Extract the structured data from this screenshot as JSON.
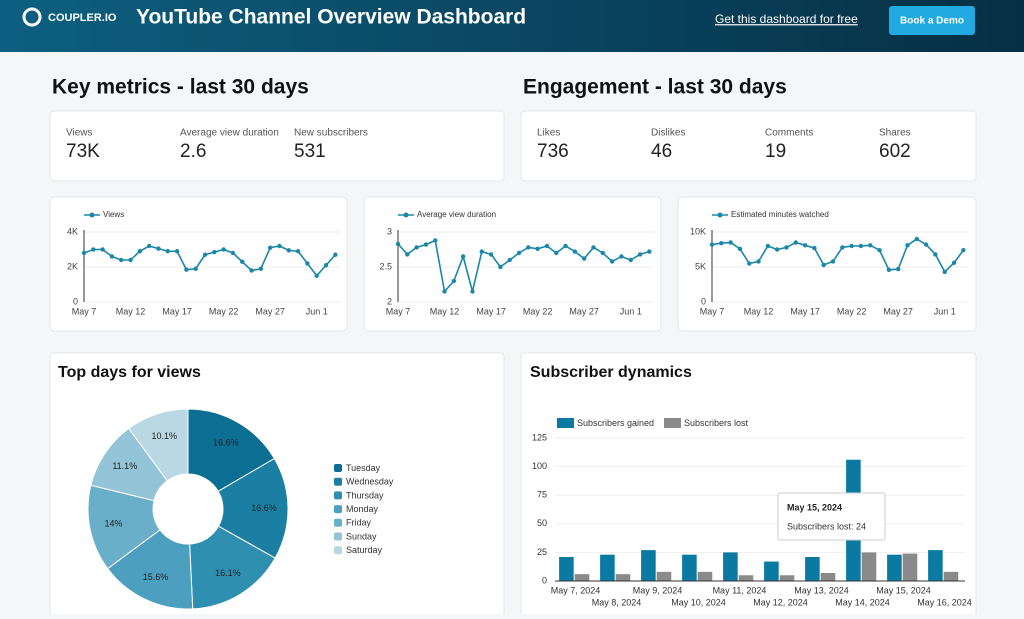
{
  "header": {
    "logo": "COUPLER.IO",
    "title": "YouTube Channel Overview Dashboard",
    "link": "Get this dashboard for free",
    "button": "Book a Demo"
  },
  "key_metrics": {
    "title": "Key metrics - last 30 days",
    "items": [
      {
        "label": "Views",
        "value": "73K"
      },
      {
        "label": "Average view duration",
        "value": 2.6
      },
      {
        "label": "New subscribers",
        "value": 531
      }
    ]
  },
  "engagement": {
    "title": "Engagement - last 30 days",
    "items": [
      {
        "label": "Likes",
        "value": 736
      },
      {
        "label": "Dislikes",
        "value": 46
      },
      {
        "label": "Comments",
        "value": 19
      },
      {
        "label": "Shares",
        "value": 602
      }
    ]
  },
  "chart_data": [
    {
      "type": "line",
      "categories": [
        "May 7",
        null,
        null,
        null,
        null,
        "May 12",
        null,
        null,
        null,
        null,
        "May 17",
        null,
        null,
        null,
        null,
        "May 22",
        null,
        null,
        null,
        null,
        "May 27",
        null,
        null,
        null,
        null,
        "Jun 1",
        null,
        null
      ],
      "series": [
        {
          "name": "Views",
          "color": "#1a87a8",
          "values": [
            2800,
            3000,
            3000,
            2600,
            2400,
            2400,
            2900,
            3200,
            3050,
            2900,
            2900,
            1850,
            1900,
            2700,
            2850,
            3000,
            2800,
            2300,
            1800,
            1900,
            3100,
            3200,
            2950,
            2900,
            2200,
            1500,
            2100,
            2700
          ]
        }
      ],
      "ylim": [
        0,
        4000
      ],
      "yticks": [
        0,
        {
          "value": 2000,
          "label": "2K"
        },
        {
          "value": 4000,
          "label": "4K"
        }
      ],
      "grid": true
    },
    {
      "type": "line",
      "categories": [
        "May 7",
        null,
        null,
        null,
        null,
        "May 12",
        null,
        null,
        null,
        null,
        "May 17",
        null,
        null,
        null,
        null,
        "May 22",
        null,
        null,
        null,
        null,
        "May 27",
        null,
        null,
        null,
        null,
        "Jun 1",
        null,
        null
      ],
      "series": [
        {
          "name": "Average view duration",
          "color": "#1a87a8",
          "values": [
            2.83,
            2.68,
            2.78,
            2.82,
            2.88,
            2.15,
            2.3,
            2.65,
            2.15,
            2.72,
            2.68,
            2.5,
            2.6,
            2.7,
            2.78,
            2.76,
            2.8,
            2.7,
            2.8,
            2.72,
            2.62,
            2.78,
            2.7,
            2.58,
            2.65,
            2.6,
            2.68,
            2.72
          ]
        }
      ],
      "ylim": [
        2,
        3
      ],
      "yticks": [
        2,
        2.5,
        3
      ],
      "grid": true
    },
    {
      "type": "line",
      "categories": [
        "May 7",
        null,
        null,
        null,
        null,
        "May 12",
        null,
        null,
        null,
        null,
        "May 17",
        null,
        null,
        null,
        null,
        "May 22",
        null,
        null,
        null,
        null,
        "May 27",
        null,
        null,
        null,
        null,
        "Jun 1",
        null,
        null
      ],
      "series": [
        {
          "name": "Estimated minutes watched",
          "color": "#1a87a8",
          "values": [
            8200,
            8400,
            8500,
            7600,
            5500,
            5800,
            8000,
            7500,
            7800,
            8500,
            8100,
            7700,
            5300,
            5800,
            7800,
            8000,
            8000,
            8100,
            7400,
            4600,
            4700,
            8100,
            9000,
            8200,
            6800,
            4300,
            5600,
            7400
          ]
        }
      ],
      "ylim": [
        0,
        10000
      ],
      "yticks": [
        0,
        {
          "value": 5000,
          "label": "5K"
        },
        {
          "value": 10000,
          "label": "10K"
        }
      ],
      "grid": true
    },
    {
      "type": "pie",
      "title": "Top days for views",
      "categories": [
        "Tuesday",
        "Wednesday",
        "Thursday",
        "Monday",
        "Friday",
        "Sunday",
        "Saturday"
      ],
      "values": [
        16.6,
        16.6,
        16.1,
        15.6,
        14,
        11.1,
        10.1
      ],
      "value_labels": [
        "16.6%",
        "16.6%",
        "16.1%",
        "15.6%",
        "14%",
        "11.1%",
        "10.1%"
      ],
      "colors": [
        "#0b6e93",
        "#1b7fa3",
        "#2f8fb1",
        "#4d9fbf",
        "#6aafca",
        "#93c4d8",
        "#b9d8e4"
      ],
      "donut": true
    },
    {
      "type": "bar",
      "title": "Subscriber dynamics",
      "categories": [
        "May 7, 2024",
        "May 8, 2024",
        "May 9, 2024",
        "May 10, 2024",
        "May 11, 2024",
        "May 12, 2024",
        "May 13, 2024",
        "May 14, 2024",
        "May 15, 2024",
        "May 16, 2024"
      ],
      "series": [
        {
          "name": "Subscribers gained",
          "color": "#0b7aa3",
          "values": [
            21,
            23,
            27,
            23,
            25,
            17,
            21,
            106,
            23,
            27
          ]
        },
        {
          "name": "Subscribers lost",
          "color": "#8a8a8a",
          "values": [
            6,
            6,
            8,
            8,
            5,
            5,
            7,
            25,
            24,
            8
          ]
        }
      ],
      "ylim": [
        0,
        125
      ],
      "yticks": [
        0,
        25,
        50,
        75,
        100,
        125
      ],
      "grid": true,
      "tooltip": {
        "title": "May 15, 2024",
        "text": "Subscribers lost: 24"
      }
    }
  ]
}
